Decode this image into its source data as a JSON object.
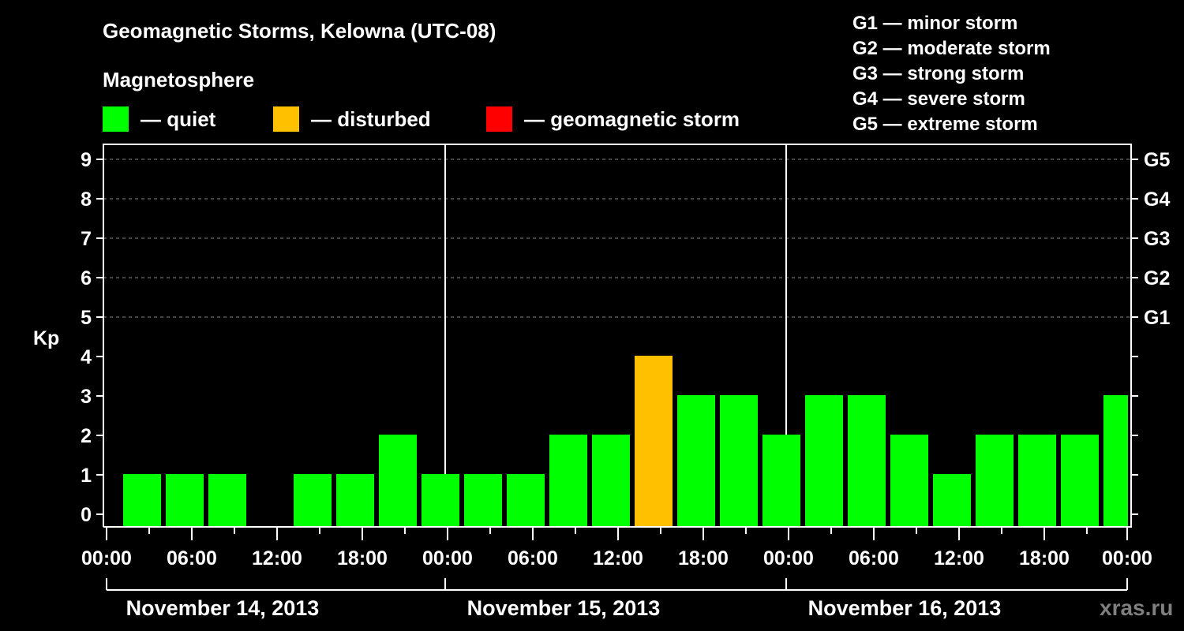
{
  "header": {
    "title": "Geomagnetic Storms, Kelowna (UTC-08)",
    "subtitle": "Magnetosphere"
  },
  "legend": [
    {
      "label": "— quiet",
      "color": "#00ff00"
    },
    {
      "label": "— disturbed",
      "color": "#ffc000"
    },
    {
      "label": "— geomagnetic storm",
      "color": "#ff0000"
    }
  ],
  "storm_scale": [
    "G1 — minor storm",
    "G2 — moderate storm",
    "G3 — strong storm",
    "G4 — severe storm",
    "G5 — extreme storm"
  ],
  "watermark": "xras.ru",
  "chart_data": {
    "type": "bar",
    "title": "Geomagnetic Storms, Kelowna (UTC-08)",
    "ylabel": "Kp",
    "ylim": [
      0,
      9
    ],
    "yticks": [
      0,
      1,
      2,
      3,
      4,
      5,
      6,
      7,
      8,
      9
    ],
    "right_axis_labels": [
      {
        "kp": 5,
        "label": "G1"
      },
      {
        "kp": 6,
        "label": "G2"
      },
      {
        "kp": 7,
        "label": "G3"
      },
      {
        "kp": 8,
        "label": "G4"
      },
      {
        "kp": 9,
        "label": "G5"
      }
    ],
    "grid": {
      "dashed_at": [
        5,
        6,
        7,
        8,
        9
      ]
    },
    "xtick_labels": [
      "00:00",
      "06:00",
      "12:00",
      "18:00",
      "00:00",
      "06:00",
      "12:00",
      "18:00",
      "00:00",
      "06:00",
      "12:00",
      "18:00",
      "00:00"
    ],
    "days": [
      "November 14, 2013",
      "November 15, 2013",
      "November 16, 2013"
    ],
    "interval_hours": 3,
    "values": [
      1,
      1,
      1,
      0,
      1,
      1,
      2,
      1,
      1,
      1,
      2,
      2,
      4,
      3,
      3,
      2,
      3,
      3,
      2,
      1,
      2,
      2,
      2,
      3
    ],
    "colors": {
      "quiet": "#00ff00",
      "disturbed": "#ffc000",
      "storm": "#ff0000"
    },
    "thresholds": {
      "disturbed": 4,
      "storm": 5
    }
  }
}
